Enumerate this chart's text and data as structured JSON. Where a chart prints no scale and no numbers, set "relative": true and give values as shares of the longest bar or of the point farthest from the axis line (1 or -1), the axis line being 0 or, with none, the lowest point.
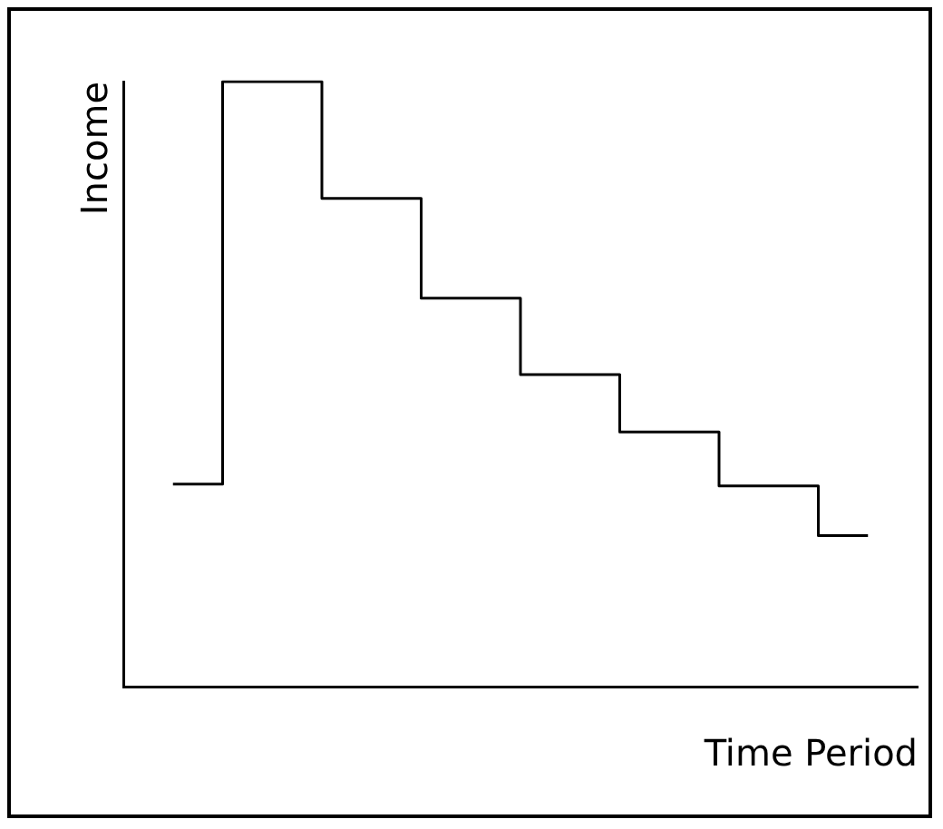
{
  "chart_data": {
    "type": "step",
    "xlabel": "Time Period",
    "ylabel": "Income",
    "categories": [
      null,
      null,
      null,
      null,
      null,
      null,
      null,
      null
    ],
    "values": [
      0.335,
      1,
      0.807,
      0.642,
      0.516,
      0.421,
      0.332,
      0.25
    ],
    "color": "#000000",
    "relative": true,
    "grid": false,
    "legend": false,
    "marker": "none",
    "line_style": "solid"
  }
}
